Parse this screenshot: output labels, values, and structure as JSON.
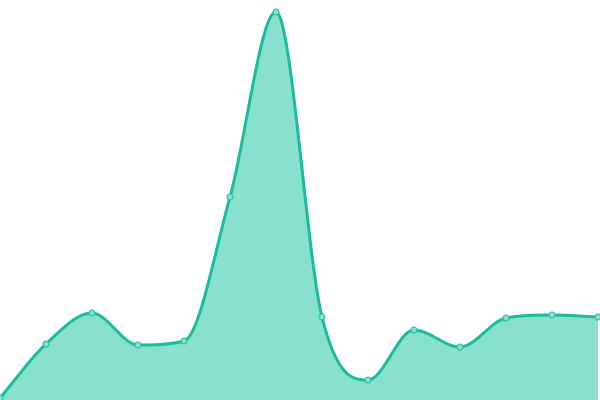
{
  "chart_data": {
    "type": "area",
    "title": "",
    "xlabel": "",
    "ylabel": "",
    "x": [
      0,
      1,
      2,
      3,
      4,
      5,
      6,
      7,
      8,
      9,
      10,
      11,
      12,
      13
    ],
    "values": [
      2,
      56,
      87,
      55,
      59,
      203,
      388,
      83,
      20,
      70,
      53,
      82,
      85,
      83
    ],
    "ylim": [
      0,
      400
    ],
    "grid": false,
    "axes_visible": false,
    "smooth": true,
    "colors": {
      "line": "#1abc9c",
      "fill": "#88e0cf",
      "marker_fill": "#88e0cf"
    }
  }
}
